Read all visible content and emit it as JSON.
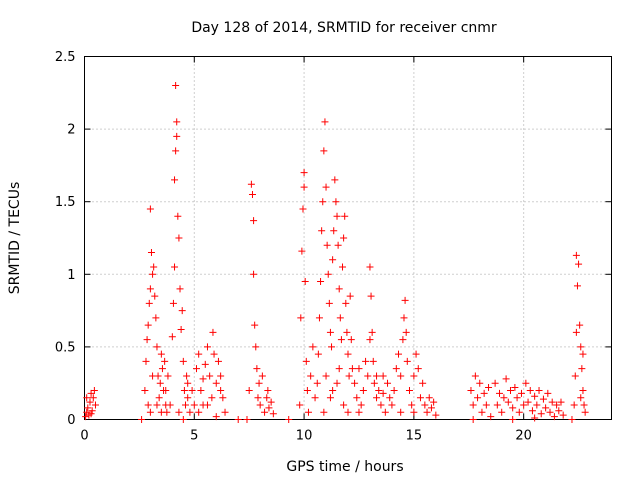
{
  "chart_data": {
    "type": "scatter",
    "title": "Day 128 of 2014, SRMTID for receiver cnmr",
    "xlabel": "GPS time / hours",
    "ylabel": "SRMTID / TECUs",
    "xlim": [
      0,
      24
    ],
    "ylim": [
      0,
      2.5
    ],
    "xticks": [
      0,
      5,
      10,
      15,
      20
    ],
    "xtick_labels": [
      "0",
      "5",
      "10",
      "15",
      "20"
    ],
    "yticks": [
      0,
      0.5,
      1,
      1.5,
      2,
      2.5
    ],
    "ytick_labels": [
      "0",
      "0.5",
      "1",
      "1.5",
      "2",
      "2.5"
    ],
    "grid": true,
    "marker": "+",
    "color": "#ff0000",
    "series": [
      {
        "name": "SRMTID",
        "points": [
          [
            0.05,
            0.02
          ],
          [
            0.1,
            0.05
          ],
          [
            0.15,
            0.08
          ],
          [
            0.2,
            0.03
          ],
          [
            0.25,
            0.12
          ],
          [
            0.3,
            0.18
          ],
          [
            0.35,
            0.06
          ],
          [
            0.4,
            0.15
          ],
          [
            0.45,
            0.2
          ],
          [
            0.5,
            0.1
          ],
          [
            0.1,
            0.15
          ],
          [
            0.3,
            0.04
          ],
          [
            2.6,
            0.0
          ],
          [
            2.75,
            0.2
          ],
          [
            2.8,
            0.4
          ],
          [
            2.85,
            0.55
          ],
          [
            2.9,
            0.65
          ],
          [
            2.95,
            0.8
          ],
          [
            3.0,
            0.9
          ],
          [
            3.0,
            1.45
          ],
          [
            3.05,
            1.15
          ],
          [
            3.1,
            1.0
          ],
          [
            3.15,
            1.05
          ],
          [
            3.2,
            0.85
          ],
          [
            3.25,
            0.7
          ],
          [
            3.3,
            0.5
          ],
          [
            3.35,
            0.3
          ],
          [
            3.4,
            0.15
          ],
          [
            3.45,
            0.25
          ],
          [
            3.5,
            0.45
          ],
          [
            3.55,
            0.35
          ],
          [
            3.6,
            0.2
          ],
          [
            3.65,
            0.4
          ],
          [
            3.7,
            0.1
          ],
          [
            3.75,
            0.05
          ],
          [
            3.8,
            0.3
          ],
          [
            2.9,
            0.1
          ],
          [
            3.0,
            0.05
          ],
          [
            3.1,
            0.3
          ],
          [
            3.3,
            0.1
          ],
          [
            3.5,
            0.05
          ],
          [
            3.7,
            0.2
          ],
          [
            3.9,
            0.1
          ],
          [
            4.0,
            0.57
          ],
          [
            4.05,
            0.8
          ],
          [
            4.1,
            1.05
          ],
          [
            4.1,
            1.65
          ],
          [
            4.15,
            1.85
          ],
          [
            4.15,
            2.3
          ],
          [
            4.2,
            2.05
          ],
          [
            4.2,
            1.95
          ],
          [
            4.25,
            1.4
          ],
          [
            4.3,
            1.25
          ],
          [
            4.35,
            0.9
          ],
          [
            4.4,
            0.62
          ],
          [
            4.45,
            0.75
          ],
          [
            4.5,
            0.4
          ],
          [
            4.55,
            0.2
          ],
          [
            4.6,
            0.1
          ],
          [
            4.65,
            0.3
          ],
          [
            4.7,
            0.15
          ],
          [
            4.8,
            0.05
          ],
          [
            4.9,
            0.2
          ],
          [
            5.0,
            0.1
          ],
          [
            4.3,
            0.05
          ],
          [
            4.5,
            0.0
          ],
          [
            4.7,
            0.25
          ],
          [
            5.1,
            0.35
          ],
          [
            5.2,
            0.45
          ],
          [
            5.3,
            0.2
          ],
          [
            5.4,
            0.1
          ],
          [
            5.5,
            0.38
          ],
          [
            5.6,
            0.5
          ],
          [
            5.7,
            0.3
          ],
          [
            5.8,
            0.15
          ],
          [
            5.85,
            0.6
          ],
          [
            5.9,
            0.45
          ],
          [
            6.0,
            0.25
          ],
          [
            6.1,
            0.4
          ],
          [
            6.2,
            0.3
          ],
          [
            6.3,
            0.15
          ],
          [
            6.4,
            0.05
          ],
          [
            5.2,
            0.05
          ],
          [
            5.6,
            0.1
          ],
          [
            6.0,
            0.02
          ],
          [
            6.2,
            0.2
          ],
          [
            5.4,
            0.28
          ],
          [
            7.0,
            0.0
          ],
          [
            7.4,
            0.0
          ],
          [
            7.5,
            0.2
          ],
          [
            7.6,
            1.62
          ],
          [
            7.65,
            1.55
          ],
          [
            7.7,
            1.37
          ],
          [
            7.7,
            1.0
          ],
          [
            7.75,
            0.65
          ],
          [
            7.8,
            0.5
          ],
          [
            7.85,
            0.35
          ],
          [
            7.9,
            0.15
          ],
          [
            8.0,
            0.1
          ],
          [
            8.1,
            0.3
          ],
          [
            8.2,
            0.05
          ],
          [
            8.3,
            0.15
          ],
          [
            8.4,
            0.08
          ],
          [
            8.5,
            0.12
          ],
          [
            8.6,
            0.04
          ],
          [
            7.95,
            0.25
          ],
          [
            8.35,
            0.2
          ],
          [
            9.3,
            0.0
          ],
          [
            9.8,
            0.1
          ],
          [
            9.85,
            0.7
          ],
          [
            9.9,
            1.16
          ],
          [
            9.95,
            1.45
          ],
          [
            10.0,
            1.7
          ],
          [
            10.0,
            1.6
          ],
          [
            10.05,
            0.95
          ],
          [
            10.1,
            0.4
          ],
          [
            10.15,
            0.2
          ],
          [
            10.2,
            0.05
          ],
          [
            10.3,
            0.3
          ],
          [
            10.4,
            0.5
          ],
          [
            10.5,
            0.15
          ],
          [
            10.6,
            0.25
          ],
          [
            10.65,
            0.45
          ],
          [
            10.7,
            0.7
          ],
          [
            10.75,
            0.95
          ],
          [
            10.8,
            1.3
          ],
          [
            10.85,
            1.5
          ],
          [
            10.9,
            1.85
          ],
          [
            10.95,
            2.05
          ],
          [
            11.0,
            1.6
          ],
          [
            11.05,
            1.2
          ],
          [
            11.1,
            1.0
          ],
          [
            11.15,
            0.8
          ],
          [
            11.2,
            0.6
          ],
          [
            11.25,
            0.5
          ],
          [
            11.3,
            1.1
          ],
          [
            11.35,
            1.3
          ],
          [
            11.4,
            1.65
          ],
          [
            11.45,
            1.5
          ],
          [
            11.5,
            1.4
          ],
          [
            11.55,
            1.2
          ],
          [
            11.6,
            0.9
          ],
          [
            11.65,
            0.7
          ],
          [
            11.7,
            0.55
          ],
          [
            11.75,
            1.05
          ],
          [
            11.8,
            1.25
          ],
          [
            11.85,
            1.4
          ],
          [
            11.9,
            0.8
          ],
          [
            11.95,
            0.6
          ],
          [
            12.0,
            0.45
          ],
          [
            12.05,
            0.3
          ],
          [
            12.1,
            0.85
          ],
          [
            12.15,
            0.55
          ],
          [
            12.2,
            0.35
          ],
          [
            11.0,
            0.3
          ],
          [
            11.2,
            0.15
          ],
          [
            11.5,
            0.25
          ],
          [
            11.8,
            0.1
          ],
          [
            12.0,
            0.05
          ],
          [
            10.9,
            0.05
          ],
          [
            11.3,
            0.2
          ],
          [
            11.6,
            0.35
          ],
          [
            12.3,
            0.25
          ],
          [
            12.4,
            0.15
          ],
          [
            12.5,
            0.35
          ],
          [
            12.6,
            0.1
          ],
          [
            12.7,
            0.2
          ],
          [
            12.8,
            0.4
          ],
          [
            12.9,
            0.3
          ],
          [
            13.0,
            0.55
          ],
          [
            13.0,
            1.05
          ],
          [
            13.05,
            0.85
          ],
          [
            13.1,
            0.6
          ],
          [
            13.15,
            0.4
          ],
          [
            13.2,
            0.25
          ],
          [
            13.3,
            0.15
          ],
          [
            13.4,
            0.2
          ],
          [
            13.5,
            0.1
          ],
          [
            13.6,
            0.3
          ],
          [
            13.7,
            0.05
          ],
          [
            13.8,
            0.25
          ],
          [
            13.9,
            0.15
          ],
          [
            14.0,
            0.1
          ],
          [
            12.5,
            0.05
          ],
          [
            13.3,
            0.3
          ],
          [
            13.6,
            0.18
          ],
          [
            14.1,
            0.2
          ],
          [
            14.2,
            0.35
          ],
          [
            14.3,
            0.45
          ],
          [
            14.4,
            0.3
          ],
          [
            14.5,
            0.55
          ],
          [
            14.55,
            0.7
          ],
          [
            14.6,
            0.82
          ],
          [
            14.65,
            0.6
          ],
          [
            14.7,
            0.4
          ],
          [
            14.8,
            0.2
          ],
          [
            14.9,
            0.1
          ],
          [
            15.0,
            0.3
          ],
          [
            15.1,
            0.45
          ],
          [
            15.2,
            0.35
          ],
          [
            15.3,
            0.15
          ],
          [
            15.4,
            0.25
          ],
          [
            15.5,
            0.1
          ],
          [
            15.6,
            0.05
          ],
          [
            15.7,
            0.15
          ],
          [
            15.8,
            0.08
          ],
          [
            15.9,
            0.12
          ],
          [
            16.0,
            0.03
          ],
          [
            14.4,
            0.05
          ],
          [
            15.0,
            0.05
          ],
          [
            17.6,
            0.2
          ],
          [
            17.7,
            0.1
          ],
          [
            17.8,
            0.3
          ],
          [
            17.9,
            0.15
          ],
          [
            18.0,
            0.25
          ],
          [
            18.1,
            0.05
          ],
          [
            18.2,
            0.18
          ],
          [
            18.3,
            0.1
          ],
          [
            18.4,
            0.22
          ],
          [
            18.5,
            0.02
          ],
          [
            17.7,
            0.0
          ],
          [
            18.7,
            0.25
          ],
          [
            18.8,
            0.1
          ],
          [
            18.9,
            0.18
          ],
          [
            19.0,
            0.05
          ],
          [
            19.1,
            0.15
          ],
          [
            19.2,
            0.28
          ],
          [
            19.3,
            0.12
          ],
          [
            19.4,
            0.2
          ],
          [
            19.5,
            0.08
          ],
          [
            19.6,
            0.22
          ],
          [
            19.7,
            0.15
          ],
          [
            19.8,
            0.05
          ],
          [
            19.9,
            0.18
          ],
          [
            20.0,
            0.1
          ],
          [
            20.1,
            0.25
          ],
          [
            20.2,
            0.12
          ],
          [
            20.3,
            0.2
          ],
          [
            20.4,
            0.06
          ],
          [
            20.5,
            0.16
          ],
          [
            20.6,
            0.1
          ],
          [
            20.7,
            0.2
          ],
          [
            20.8,
            0.04
          ],
          [
            20.9,
            0.14
          ],
          [
            21.0,
            0.08
          ],
          [
            21.1,
            0.18
          ],
          [
            21.2,
            0.05
          ],
          [
            21.3,
            0.12
          ],
          [
            21.4,
            0.02
          ],
          [
            21.5,
            0.1
          ],
          [
            21.6,
            0.06
          ],
          [
            21.7,
            0.12
          ],
          [
            21.8,
            0.03
          ],
          [
            19.5,
            0.0
          ],
          [
            20.5,
            0.01
          ],
          [
            22.2,
            0.0
          ],
          [
            22.3,
            0.1
          ],
          [
            22.35,
            0.3
          ],
          [
            22.4,
            0.6
          ],
          [
            22.45,
            0.92
          ],
          [
            22.4,
            1.13
          ],
          [
            22.5,
            1.07
          ],
          [
            22.55,
            0.65
          ],
          [
            22.6,
            0.5
          ],
          [
            22.65,
            0.35
          ],
          [
            22.7,
            0.2
          ],
          [
            22.75,
            0.1
          ],
          [
            22.8,
            0.05
          ],
          [
            22.7,
            0.45
          ],
          [
            22.6,
            0.15
          ]
        ]
      }
    ]
  }
}
